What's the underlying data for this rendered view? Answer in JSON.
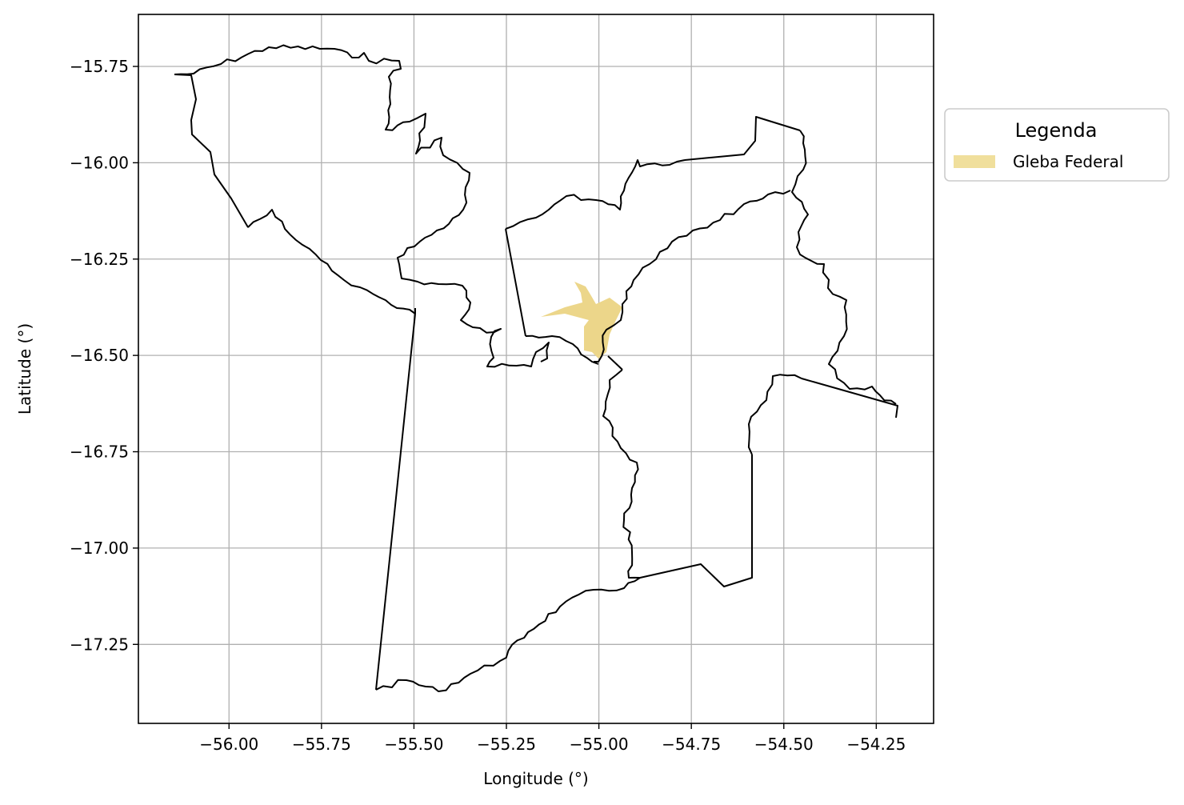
{
  "map": {
    "xlabel": "Longitude (°)",
    "ylabel": "Latitude (°)",
    "x_ticks": [
      -56.0,
      -55.75,
      -55.5,
      -55.25,
      -55.0,
      -54.75,
      -54.5,
      -54.25
    ],
    "x_tick_labels": [
      "−56.00",
      "−55.75",
      "−55.50",
      "−55.25",
      "−55.00",
      "−54.75",
      "−54.50",
      "−54.25"
    ],
    "y_ticks": [
      -15.75,
      -16.0,
      -16.25,
      -16.5,
      -16.75,
      -17.0,
      -17.25
    ],
    "y_tick_labels": [
      "−15.75",
      "−16.00",
      "−16.25",
      "−16.50",
      "−16.75",
      "−17.00",
      "−17.25"
    ],
    "xlim": [
      -56.245,
      -54.095
    ],
    "ylim": [
      -17.455,
      -15.615
    ],
    "grid": true,
    "legend": {
      "title": "Legenda",
      "placement": "outside-right-top",
      "entries": [
        {
          "label": "Gleba Federal",
          "color": "#f0df9c"
        }
      ]
    },
    "colors": {
      "boundary": "#000000",
      "gleba_fill": "#ecd68a",
      "grid": "#b0b0b0"
    },
    "municipalities": [
      {
        "name_key": "west",
        "coords": [
          [
            -56.15,
            -15.77
          ],
          [
            -55.9,
            -15.7
          ],
          [
            -55.68,
            -15.705
          ],
          [
            -55.64,
            -15.725
          ],
          [
            -55.62,
            -15.73
          ],
          [
            -55.6,
            -15.74
          ],
          [
            -55.54,
            -15.74
          ],
          [
            -55.53,
            -15.76
          ],
          [
            -55.56,
            -15.78
          ],
          [
            -55.54,
            -15.84
          ],
          [
            -55.56,
            -15.9
          ],
          [
            -55.52,
            -15.92
          ],
          [
            -55.48,
            -15.9
          ],
          [
            -55.51,
            -15.98
          ],
          [
            -55.44,
            -15.98
          ],
          [
            -55.38,
            -16.02
          ],
          [
            -55.38,
            -16.12
          ],
          [
            -55.36,
            -16.16
          ],
          [
            -55.44,
            -16.2
          ],
          [
            -55.48,
            -16.24
          ],
          [
            -55.5,
            -16.25
          ],
          [
            -55.48,
            -16.29
          ],
          [
            -55.43,
            -16.31
          ],
          [
            -55.38,
            -16.33
          ],
          [
            -55.36,
            -16.35
          ],
          [
            -55.36,
            -16.44
          ],
          [
            -55.28,
            -16.47
          ],
          [
            -55.28,
            -16.52
          ],
          [
            -55.15,
            -16.53
          ],
          [
            -55.13,
            -16.48
          ],
          [
            -55.1,
            -16.46
          ],
          [
            -55.05,
            -16.47
          ],
          [
            -55.0,
            -16.51
          ],
          [
            -54.98,
            -16.49
          ],
          [
            -54.94,
            -16.47
          ],
          [
            -54.92,
            -16.46
          ],
          [
            -54.96,
            -16.42
          ],
          [
            -54.98,
            -16.35
          ],
          [
            -54.92,
            -16.28
          ],
          [
            -54.85,
            -16.23
          ],
          [
            -54.8,
            -16.2
          ],
          [
            -54.7,
            -16.15
          ],
          [
            -54.6,
            -16.12
          ],
          [
            -54.5,
            -16.09
          ],
          [
            -54.42,
            -16.07
          ],
          [
            -54.44,
            -16.02
          ],
          [
            -54.4,
            -15.96
          ],
          [
            -54.42,
            -15.92
          ],
          [
            -54.55,
            -15.88
          ],
          [
            -54.56,
            -15.9
          ],
          [
            -54.57,
            -15.96
          ],
          [
            -54.6,
            -15.97
          ],
          [
            -54.8,
            -15.99
          ],
          [
            -54.9,
            -16.0
          ],
          [
            -54.92,
            -16.02
          ],
          [
            -54.95,
            -16.0
          ],
          [
            -54.96,
            -16.04
          ],
          [
            -54.97,
            -16.12
          ],
          [
            -55.0,
            -16.1
          ],
          [
            -55.05,
            -16.1
          ],
          [
            -55.1,
            -16.09
          ],
          [
            -55.15,
            -16.13
          ],
          [
            -55.21,
            -16.15
          ],
          [
            -55.25,
            -16.17
          ],
          [
            -55.2,
            -16.45
          ],
          [
            -55.16,
            -16.45
          ]
        ]
      }
    ]
  }
}
